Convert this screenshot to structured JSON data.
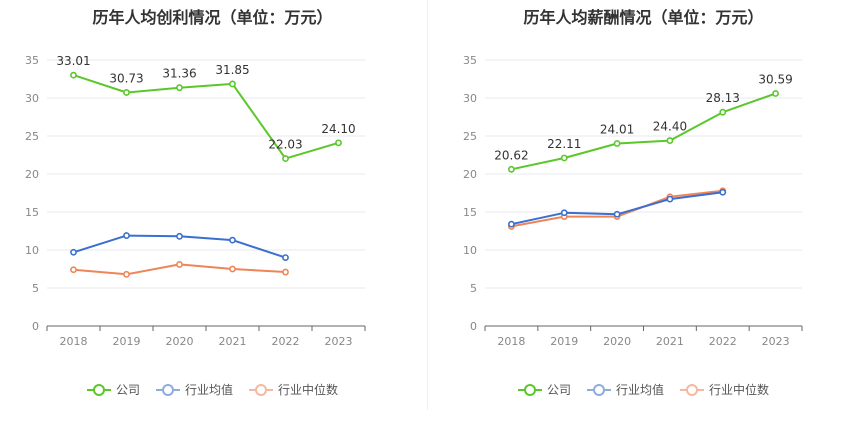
{
  "chart_data": [
    {
      "type": "line",
      "title": "历年人均创利情况（单位：万元）",
      "categories": [
        "2018",
        "2019",
        "2020",
        "2021",
        "2022",
        "2023"
      ],
      "ylim": [
        0,
        35
      ],
      "yticks": [
        "0",
        "5",
        "10",
        "15",
        "20",
        "25",
        "30",
        "35"
      ],
      "grid": true,
      "legend_position": "bottom",
      "series": [
        {
          "name": "公司",
          "color": "#5ac72b",
          "values": [
            33.01,
            30.73,
            31.36,
            31.85,
            22.03,
            24.1
          ],
          "labels": [
            "33.01",
            "30.73",
            "31.36",
            "31.85",
            "22.03",
            "24.10"
          ]
        },
        {
          "name": "行业均值",
          "color": "#3a6fd1",
          "values": [
            9.7,
            11.9,
            11.8,
            11.3,
            9.0,
            null
          ]
        },
        {
          "name": "行业中位数",
          "color": "#ee8559",
          "values": [
            7.4,
            6.8,
            8.1,
            7.5,
            7.1,
            null
          ]
        }
      ]
    },
    {
      "type": "line",
      "title": "历年人均薪酬情况（单位：万元）",
      "categories": [
        "2018",
        "2019",
        "2020",
        "2021",
        "2022",
        "2023"
      ],
      "ylim": [
        0,
        35
      ],
      "yticks": [
        "0",
        "5",
        "10",
        "15",
        "20",
        "25",
        "30",
        "35"
      ],
      "grid": true,
      "legend_position": "bottom",
      "series": [
        {
          "name": "公司",
          "color": "#5ac72b",
          "values": [
            20.62,
            22.11,
            24.01,
            24.4,
            28.13,
            30.59
          ],
          "labels": [
            "20.62",
            "22.11",
            "24.01",
            "24.40",
            "28.13",
            "30.59"
          ]
        },
        {
          "name": "行业均值",
          "color": "#3a6fd1",
          "values": [
            13.4,
            14.9,
            14.7,
            16.7,
            17.6,
            null
          ]
        },
        {
          "name": "行业中位数",
          "color": "#ee8559",
          "values": [
            13.1,
            14.4,
            14.4,
            17.0,
            17.8,
            null
          ]
        }
      ]
    }
  ],
  "legend": {
    "items": [
      {
        "label": "公司",
        "color": "#5ac72b"
      },
      {
        "label": "行业均值",
        "color": "#8eabe4"
      },
      {
        "label": "行业中位数",
        "color": "#f5b8a0"
      }
    ]
  }
}
